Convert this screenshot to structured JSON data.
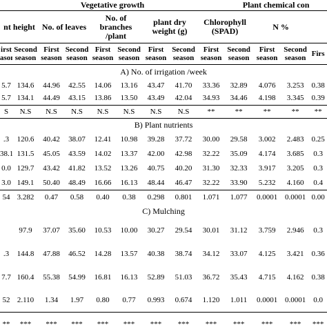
{
  "table": {
    "group_headers": [
      "Vegetative growth",
      "Plant chemical con"
    ],
    "column_headers": [
      "nt height",
      "No. of leaves",
      "No. of branches /plant",
      "plant dry weight (g)",
      "Chlorophyll (SPAD)",
      "N %"
    ],
    "sub_headers": [
      "irst ason",
      "Second season",
      "First season",
      "Second season",
      "First season",
      "Second season",
      "First season",
      "Second season",
      "First season",
      "Second season",
      "First season",
      "Second season",
      "Firs"
    ],
    "sections": [
      {
        "title": "A) No. of irrigation /week",
        "row_height": 19,
        "rows": [
          [
            "5.7",
            "134.6",
            "44.96",
            "42.55",
            "14.06",
            "13.16",
            "43.47",
            "41.70",
            "33.36",
            "32.89",
            "4.076",
            "3.253",
            "0.38"
          ],
          [
            "5.7",
            "134.1",
            "44.49",
            "43.15",
            "13.86",
            "13.50",
            "43.49",
            "42.04",
            "34.93",
            "34.46",
            "4.198",
            "3.345",
            "0.39"
          ],
          [
            "S",
            "N.S",
            "N.S",
            "N.S",
            "N.S",
            "N.S",
            "N.S",
            "N.S",
            "**",
            "**",
            "**",
            "**",
            "**"
          ]
        ]
      },
      {
        "title": "B) Plant nutrients",
        "row_height": 21,
        "rows": [
          [
            ".3",
            "120.6",
            "40.42",
            "38.07",
            "12.41",
            "10.98",
            "39.28",
            "37.72",
            "30.00",
            "29.58",
            "3.002",
            "2.483",
            "0.25"
          ],
          [
            "38.1",
            "131.5",
            "45.05",
            "43.59",
            "14.02",
            "13.37",
            "42.00",
            "42.98",
            "32.22",
            "35.09",
            "4.174",
            "3.685",
            "0.3"
          ],
          [
            "0.0",
            "129.7",
            "43.42",
            "41.82",
            "13.52",
            "13.26",
            "40.75",
            "40.20",
            "31.30",
            "32.33",
            "3.917",
            "3.205",
            "0.3"
          ],
          [
            "3.0",
            "149.1",
            "50.40",
            "48.49",
            "16.66",
            "16.13",
            "48.44",
            "46.47",
            "32.22",
            "33.90",
            "5.232",
            "4.160",
            "0.4"
          ],
          [
            "54",
            "3.282",
            "0.47",
            "0.58",
            "0.40",
            "0.38",
            "0.298",
            "0.801",
            "1.071",
            "1.077",
            "0.0001",
            "0.0001",
            "0.00"
          ]
        ]
      },
      {
        "title": "C) Mulching",
        "row_height": 34,
        "rows": [
          [
            null,
            "97.9",
            "37.07",
            "35.60",
            "10.53",
            "10.00",
            "30.27",
            "29.54",
            "30.01",
            "31.12",
            "3.759",
            "2.946",
            "0.3"
          ],
          [
            ".3",
            "144.8",
            "47.88",
            "46.52",
            "14.28",
            "13.57",
            "40.38",
            "38.74",
            "34.12",
            "33.07",
            "4.125",
            "3.421",
            "0.36"
          ],
          [
            "7.7",
            "160.4",
            "55.38",
            "54.99",
            "16.81",
            "16.13",
            "52.89",
            "51.03",
            "36.72",
            "35.43",
            "4.715",
            "4.162",
            "0.38"
          ],
          [
            "52",
            "2.110",
            "1.34",
            "1.97",
            "0.80",
            "0.77",
            "0.993",
            "0.674",
            "1.120",
            "1.011",
            "0.0001",
            "0.0001",
            "0.0"
          ],
          [
            "**",
            "***",
            "***",
            "***",
            "***",
            "***",
            "***",
            "***",
            "***",
            "***",
            "***",
            "***",
            "***"
          ]
        ]
      }
    ]
  }
}
